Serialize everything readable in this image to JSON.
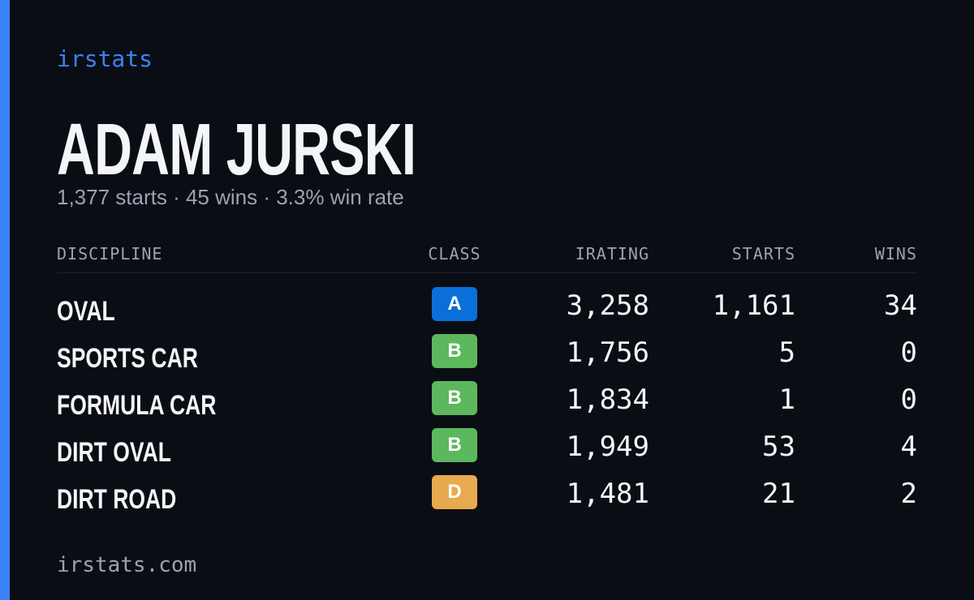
{
  "brand": "irstats",
  "driver": {
    "name": "ADAM JURSKI",
    "summary": "1,377 starts · 45 wins · 3.3% win rate"
  },
  "table": {
    "headers": [
      "DISCIPLINE",
      "CLASS",
      "IRATING",
      "STARTS",
      "WINS"
    ],
    "rows": [
      [
        "OVAL",
        "A",
        "3,258",
        "1,161",
        "34"
      ],
      [
        "SPORTS CAR",
        "B",
        "1,756",
        "5",
        "0"
      ],
      [
        "FORMULA CAR",
        "B",
        "1,834",
        "1",
        "0"
      ],
      [
        "DIRT OVAL",
        "B",
        "1,949",
        "53",
        "4"
      ],
      [
        "DIRT ROAD",
        "D",
        "1,481",
        "21",
        "2"
      ]
    ],
    "class_colors": {
      "A": "#0b6fd9",
      "B": "#5cb85c",
      "D": "#e8aa4e"
    }
  },
  "footer": "irstats.com"
}
